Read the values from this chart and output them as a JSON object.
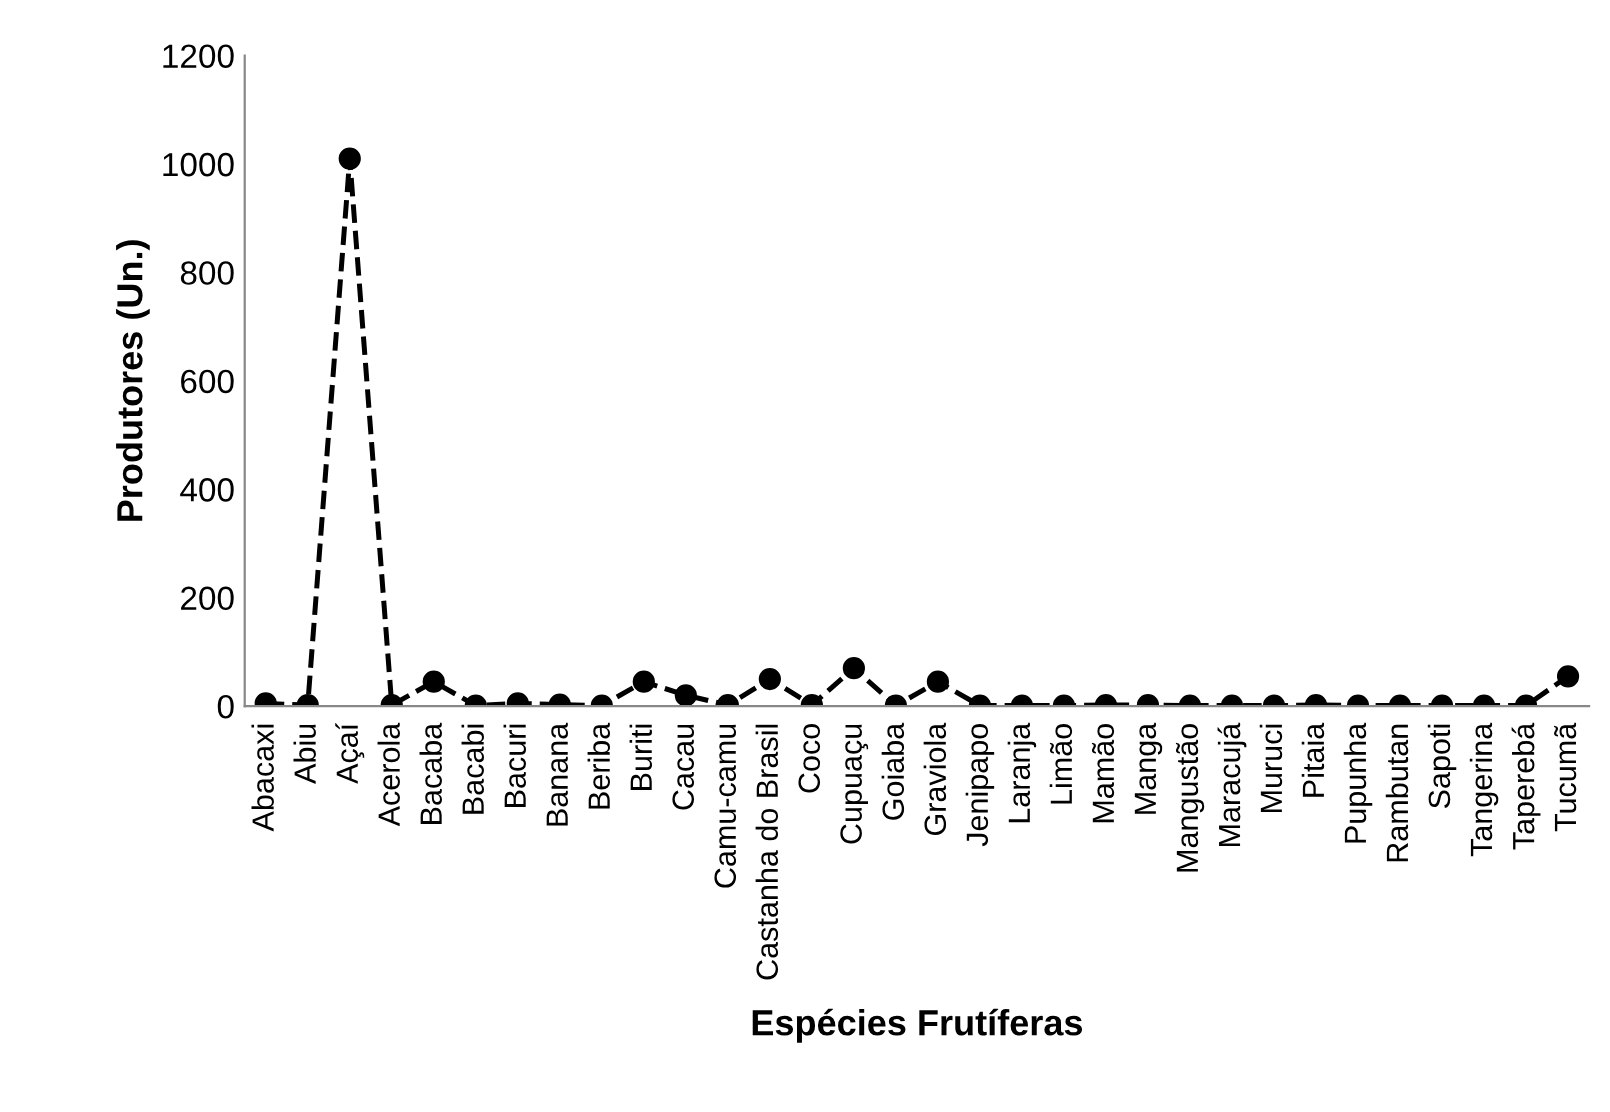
{
  "chart_data": {
    "type": "line",
    "xlabel": "Espécies Frutíferas",
    "ylabel": "Produtores (Un.)",
    "categories": [
      "Abacaxi",
      "Abiu",
      "Açaí",
      "Acerola",
      "Bacaba",
      "Bacabi",
      "Bacuri",
      "Banana",
      "Beriba",
      "Buriti",
      "Cacau",
      "Camu-camu",
      "Castanha do Brasil",
      "Coco",
      "Cupuaçu",
      "Goiaba",
      "Graviola",
      "Jenipapo",
      "Laranja",
      "Limão",
      "Mamão",
      "Manga",
      "Mangustão",
      "Maracujá",
      "Muruci",
      "Pitaia",
      "Pupunha",
      "Rambutan",
      "Sapoti",
      "Tangerina",
      "Taperebá",
      "Tucumã"
    ],
    "series": [
      {
        "color": "#000000",
        "values": [
          5,
          2,
          1010,
          2,
          45,
          1,
          5,
          3,
          1,
          45,
          20,
          2,
          50,
          2,
          70,
          1,
          45,
          1,
          1,
          1,
          2,
          2,
          1,
          1,
          1,
          2,
          1,
          1,
          1,
          1,
          1,
          55
        ]
      }
    ],
    "ylim": [
      0,
      1200
    ],
    "yticks": [
      0,
      200,
      400,
      600,
      800,
      1000,
      1200
    ],
    "grid": false,
    "legend": false,
    "marker": "circle",
    "line_style": "dashed"
  }
}
